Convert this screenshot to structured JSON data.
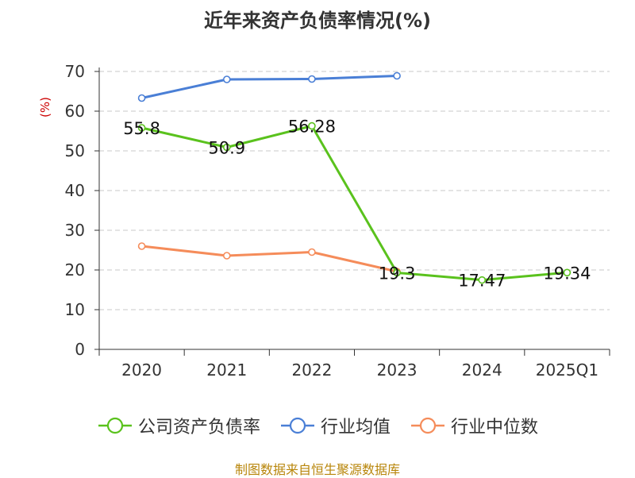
{
  "chart_data": {
    "type": "line",
    "title": "近年来资产负债率情况(%)",
    "ylabel": "(%)",
    "categories": [
      "2020",
      "2021",
      "2022",
      "2023",
      "2024",
      "2025Q1"
    ],
    "ylim": [
      0,
      70
    ],
    "yticks": [
      0,
      10,
      20,
      30,
      40,
      50,
      60,
      70
    ],
    "grid": true,
    "legend_position": "bottom",
    "series": [
      {
        "name": "公司资产负债率",
        "color": "#5ac21d",
        "values": [
          55.8,
          50.9,
          56.28,
          19.3,
          17.47,
          19.34
        ],
        "labels": [
          "55.8",
          "50.9",
          "56.28",
          "19.3",
          "17.47",
          "19.34"
        ]
      },
      {
        "name": "行业均值",
        "color": "#4a7fd6",
        "values": [
          63.3,
          68.0,
          68.1,
          68.9,
          null,
          null
        ]
      },
      {
        "name": "行业中位数",
        "color": "#f58c5a",
        "values": [
          26.0,
          23.6,
          24.5,
          19.6,
          null,
          null
        ]
      }
    ]
  },
  "source": "制图数据来自恒生聚源数据库"
}
